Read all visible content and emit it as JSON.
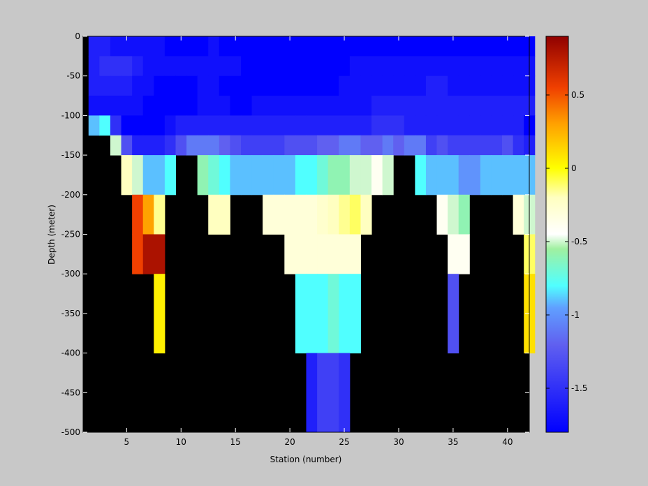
{
  "chart_data": {
    "type": "heatmap",
    "xlabel": "Station (number)",
    "ylabel": "Depth (meter)",
    "x_ticks": [
      5,
      10,
      15,
      20,
      25,
      30,
      35,
      40
    ],
    "y_ticks": [
      0,
      -50,
      -100,
      -150,
      -200,
      -250,
      -300,
      -350,
      -400,
      -450,
      -500
    ],
    "colorbar_ticks": [
      0.5,
      0,
      -0.5,
      -1,
      -1.5
    ],
    "xlim": [
      1,
      42
    ],
    "ylim": [
      -500,
      0
    ],
    "clim": [
      -1.8,
      0.9
    ],
    "colormap": "jet-like (blue to white to red)",
    "background_color": "#c8c8c8",
    "no_data_color": "#000000",
    "depth_bands": [
      {
        "top": 0,
        "bottom": -25
      },
      {
        "top": -25,
        "bottom": -50
      },
      {
        "top": -50,
        "bottom": -75
      },
      {
        "top": -75,
        "bottom": -100
      },
      {
        "top": -100,
        "bottom": -125
      },
      {
        "top": -125,
        "bottom": -150
      },
      {
        "top": -150,
        "bottom": -200
      },
      {
        "top": -200,
        "bottom": -250
      },
      {
        "top": -250,
        "bottom": -300
      },
      {
        "top": -300,
        "bottom": -400
      },
      {
        "top": -400,
        "bottom": -500
      }
    ],
    "stations": [
      2,
      3,
      4,
      5,
      6,
      7,
      8,
      9,
      10,
      11,
      12,
      13,
      14,
      15,
      16,
      17,
      18,
      19,
      20,
      21,
      22,
      23,
      24,
      25,
      26,
      27,
      28,
      29,
      30,
      31,
      32,
      33,
      34,
      35,
      36,
      37,
      38,
      39,
      40,
      41,
      42
    ],
    "values": [
      [
        -1.6,
        -1.6,
        -1.7,
        -1.7,
        -1.7,
        -1.7,
        -1.7,
        -1.8,
        -1.8,
        -1.8,
        -1.8,
        -1.7,
        -1.8,
        -1.8,
        -1.8,
        -1.8,
        -1.8,
        -1.8,
        -1.8,
        -1.8,
        -1.8,
        -1.8,
        -1.8,
        -1.8,
        -1.8,
        -1.8,
        -1.8,
        -1.8,
        -1.8,
        -1.8,
        -1.8,
        -1.8,
        -1.8,
        -1.8,
        -1.8,
        -1.8,
        -1.8,
        -1.8,
        -1.8,
        -1.8,
        -1.8
      ],
      [
        -1.6,
        -1.5,
        -1.5,
        -1.5,
        -1.6,
        -1.7,
        -1.7,
        -1.7,
        -1.7,
        -1.7,
        -1.7,
        -1.7,
        -1.7,
        -1.7,
        -1.8,
        -1.8,
        -1.8,
        -1.8,
        -1.8,
        -1.8,
        -1.8,
        -1.8,
        -1.8,
        -1.8,
        -1.7,
        -1.7,
        -1.7,
        -1.7,
        -1.7,
        -1.7,
        -1.7,
        -1.7,
        -1.7,
        -1.7,
        -1.7,
        -1.7,
        -1.7,
        -1.7,
        -1.7,
        -1.7,
        -1.7
      ],
      [
        -1.6,
        -1.6,
        -1.6,
        -1.6,
        -1.7,
        -1.7,
        -1.8,
        -1.8,
        -1.8,
        -1.8,
        -1.7,
        -1.7,
        -1.8,
        -1.8,
        -1.8,
        -1.8,
        -1.8,
        -1.8,
        -1.8,
        -1.8,
        -1.8,
        -1.8,
        -1.8,
        -1.7,
        -1.7,
        -1.7,
        -1.7,
        -1.7,
        -1.7,
        -1.7,
        -1.7,
        -1.6,
        -1.6,
        -1.7,
        -1.7,
        -1.7,
        -1.7,
        -1.7,
        -1.7,
        -1.7,
        -1.7
      ],
      [
        -1.7,
        -1.7,
        -1.7,
        -1.7,
        -1.7,
        -1.8,
        -1.8,
        -1.8,
        -1.8,
        -1.8,
        -1.7,
        -1.7,
        -1.7,
        -1.8,
        -1.8,
        -1.7,
        -1.7,
        -1.7,
        -1.7,
        -1.7,
        -1.7,
        -1.7,
        -1.7,
        -1.7,
        -1.7,
        -1.7,
        -1.6,
        -1.6,
        -1.6,
        -1.6,
        -1.6,
        -1.6,
        -1.6,
        -1.6,
        -1.6,
        -1.6,
        -1.6,
        -1.6,
        -1.6,
        -1.6,
        -1.6
      ],
      [
        -0.9,
        -0.8,
        -1.5,
        -1.8,
        -1.8,
        -1.8,
        -1.8,
        -1.7,
        -1.6,
        -1.6,
        -1.6,
        -1.6,
        -1.6,
        -1.6,
        -1.6,
        -1.6,
        -1.6,
        -1.6,
        -1.6,
        -1.6,
        -1.6,
        -1.6,
        -1.6,
        -1.6,
        -1.6,
        -1.6,
        -1.5,
        -1.5,
        -1.5,
        -1.6,
        -1.6,
        -1.6,
        -1.6,
        -1.6,
        -1.6,
        -1.6,
        -1.6,
        -1.6,
        -1.6,
        -1.6,
        -1.8
      ],
      [
        null,
        null,
        -0.5,
        -1.3,
        -1.6,
        -1.6,
        -1.6,
        -1.5,
        -1.3,
        -1.1,
        -1.1,
        -1.1,
        -1.2,
        -1.3,
        -1.4,
        -1.4,
        -1.4,
        -1.4,
        -1.3,
        -1.3,
        -1.3,
        -1.2,
        -1.2,
        -1.1,
        -1.1,
        -1.2,
        -1.2,
        -1.1,
        -1.2,
        -1.1,
        -1.1,
        -1.4,
        -1.3,
        -1.4,
        -1.4,
        -1.4,
        -1.4,
        -1.4,
        -1.3,
        -1.5,
        -1.6
      ],
      [
        null,
        null,
        null,
        -0.2,
        -0.5,
        -0.9,
        -0.9,
        -0.8,
        null,
        null,
        -0.6,
        -0.7,
        -0.8,
        -0.9,
        -0.9,
        -0.9,
        -0.9,
        -0.9,
        -0.9,
        -0.8,
        -0.8,
        -0.7,
        -0.6,
        -0.6,
        -0.5,
        -0.5,
        -0.4,
        -0.5,
        null,
        null,
        -0.8,
        -0.9,
        -0.9,
        -0.9,
        -1.0,
        -1.0,
        -0.9,
        -0.9,
        -0.9,
        -0.9,
        -0.9
      ],
      [
        null,
        null,
        null,
        null,
        0.55,
        0.3,
        -0.15,
        null,
        null,
        null,
        null,
        -0.2,
        -0.2,
        null,
        null,
        null,
        -0.3,
        -0.3,
        -0.3,
        -0.3,
        -0.3,
        -0.25,
        -0.2,
        -0.15,
        -0.1,
        -0.2,
        null,
        null,
        null,
        null,
        null,
        null,
        -0.4,
        -0.5,
        -0.6,
        null,
        null,
        null,
        null,
        -0.3,
        -0.5
      ],
      [
        null,
        null,
        null,
        null,
        0.55,
        0.8,
        0.8,
        null,
        null,
        null,
        null,
        null,
        null,
        null,
        null,
        null,
        null,
        null,
        -0.3,
        -0.3,
        -0.3,
        -0.3,
        -0.3,
        -0.3,
        -0.3,
        null,
        null,
        null,
        null,
        null,
        null,
        null,
        null,
        -0.4,
        -0.4,
        null,
        null,
        null,
        null,
        null,
        -0.1
      ],
      [
        null,
        null,
        null,
        null,
        null,
        null,
        0.05,
        null,
        null,
        null,
        null,
        null,
        null,
        null,
        null,
        null,
        null,
        null,
        null,
        -0.8,
        -0.8,
        -0.8,
        -0.7,
        -0.8,
        -0.8,
        null,
        null,
        null,
        null,
        null,
        null,
        null,
        null,
        -1.3,
        null,
        null,
        null,
        null,
        null,
        null,
        0.1
      ],
      [
        null,
        null,
        null,
        null,
        null,
        null,
        null,
        null,
        null,
        null,
        null,
        null,
        null,
        null,
        null,
        null,
        null,
        null,
        null,
        null,
        -1.6,
        -1.4,
        -1.4,
        -1.5,
        null,
        null,
        null,
        null,
        null,
        null,
        null,
        null,
        null,
        null,
        null,
        null,
        null,
        null,
        null,
        null,
        null
      ]
    ]
  }
}
